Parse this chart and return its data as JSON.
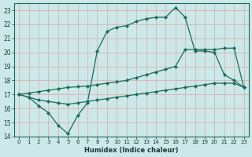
{
  "xlabel": "Humidex (Indice chaleur)",
  "bg_color": "#cce8e8",
  "grid_color": "#dda8a8",
  "line_color": "#1a6a5a",
  "xlim": [
    -0.5,
    23.5
  ],
  "ylim": [
    14,
    23.5
  ],
  "xticks": [
    0,
    1,
    2,
    3,
    4,
    5,
    6,
    7,
    8,
    9,
    10,
    11,
    12,
    13,
    14,
    15,
    16,
    17,
    18,
    19,
    20,
    21,
    22,
    23
  ],
  "yticks": [
    14,
    15,
    16,
    17,
    18,
    19,
    20,
    21,
    22,
    23
  ],
  "line1_x": [
    0,
    1,
    2,
    3,
    4,
    5,
    6,
    7,
    8,
    9,
    10,
    11,
    12,
    13,
    14,
    15,
    16,
    17,
    18,
    19,
    20,
    21,
    22,
    23
  ],
  "line1_y": [
    17.0,
    16.8,
    16.2,
    15.7,
    14.8,
    14.2,
    15.5,
    16.4,
    20.1,
    21.5,
    21.8,
    21.9,
    22.2,
    22.4,
    22.5,
    22.5,
    23.2,
    22.5,
    20.1,
    20.1,
    20.0,
    18.4,
    18.0,
    17.5
  ],
  "line1_markers_x": [
    0,
    1,
    2,
    3,
    4,
    5,
    7,
    8,
    10,
    11,
    12,
    13,
    14,
    15,
    16,
    17,
    20,
    21,
    23
  ],
  "line1_markers_y": [
    17.0,
    16.8,
    16.2,
    15.7,
    14.8,
    14.2,
    16.4,
    20.1,
    21.8,
    21.9,
    22.2,
    22.4,
    22.5,
    22.5,
    23.2,
    22.5,
    20.0,
    18.4,
    17.5
  ],
  "line2_full_x": [
    0,
    1,
    2,
    3,
    4,
    5,
    6,
    7,
    8,
    9,
    10,
    11,
    12,
    13,
    14,
    15,
    16,
    17,
    18,
    19,
    20,
    21,
    22,
    23
  ],
  "line2_full_y": [
    17.0,
    17.1,
    17.2,
    17.3,
    17.4,
    17.5,
    17.55,
    17.6,
    17.7,
    17.8,
    17.9,
    18.0,
    18.2,
    18.4,
    18.6,
    18.8,
    19.0,
    20.2,
    20.2,
    20.2,
    20.2,
    20.3,
    20.3,
    17.5
  ],
  "line3_full_x": [
    0,
    1,
    2,
    3,
    4,
    5,
    6,
    7,
    8,
    9,
    10,
    11,
    12,
    13,
    14,
    15,
    16,
    17,
    18,
    19,
    20,
    21,
    22,
    23
  ],
  "line3_full_y": [
    17.0,
    16.8,
    16.6,
    16.5,
    16.4,
    16.3,
    16.4,
    16.5,
    16.6,
    16.7,
    16.8,
    16.9,
    17.0,
    17.1,
    17.2,
    17.3,
    17.4,
    17.5,
    17.6,
    17.7,
    17.8,
    17.8,
    17.8,
    17.5
  ]
}
